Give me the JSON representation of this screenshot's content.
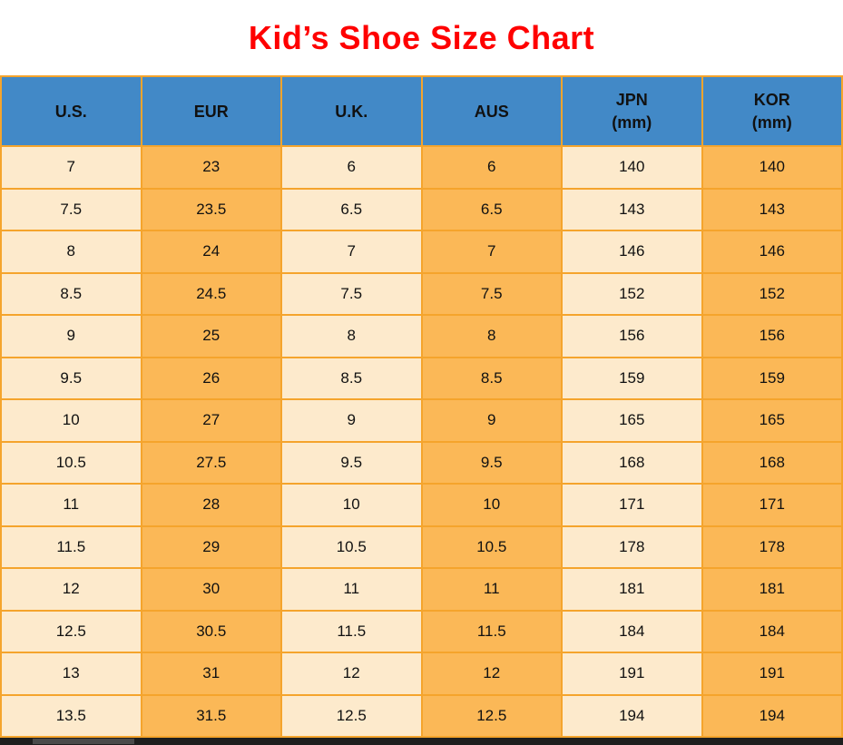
{
  "page": {
    "title": "Kid’s Shoe Size Chart"
  },
  "colors": {
    "title_red": "#FF0000",
    "header_blue": "#4289C7",
    "cell_cream": "#FDEACC",
    "cell_orange": "#FBB857",
    "border_orange": "#F5A42C",
    "scrollbar_track": "#1E1E1E",
    "scrollbar_thumb": "#4A4A4A"
  },
  "table": {
    "columns": [
      {
        "label": "U.S.",
        "sub": ""
      },
      {
        "label": "EUR",
        "sub": ""
      },
      {
        "label": "U.K.",
        "sub": ""
      },
      {
        "label": "AUS",
        "sub": ""
      },
      {
        "label": "JPN",
        "sub": "(mm)"
      },
      {
        "label": "KOR",
        "sub": "(mm)"
      }
    ],
    "rows": [
      [
        "7",
        "23",
        "6",
        "6",
        "140",
        "140"
      ],
      [
        "7.5",
        "23.5",
        "6.5",
        "6.5",
        "143",
        "143"
      ],
      [
        "8",
        "24",
        "7",
        "7",
        "146",
        "146"
      ],
      [
        "8.5",
        "24.5",
        "7.5",
        "7.5",
        "152",
        "152"
      ],
      [
        "9",
        "25",
        "8",
        "8",
        "156",
        "156"
      ],
      [
        "9.5",
        "26",
        "8.5",
        "8.5",
        "159",
        "159"
      ],
      [
        "10",
        "27",
        "9",
        "9",
        "165",
        "165"
      ],
      [
        "10.5",
        "27.5",
        "9.5",
        "9.5",
        "168",
        "168"
      ],
      [
        "11",
        "28",
        "10",
        "10",
        "171",
        "171"
      ],
      [
        "11.5",
        "29",
        "10.5",
        "10.5",
        "178",
        "178"
      ],
      [
        "12",
        "30",
        "11",
        "11",
        "181",
        "181"
      ],
      [
        "12.5",
        "30.5",
        "11.5",
        "11.5",
        "184",
        "184"
      ],
      [
        "13",
        "31",
        "12",
        "12",
        "191",
        "191"
      ],
      [
        "13.5",
        "31.5",
        "12.5",
        "12.5",
        "194",
        "194"
      ]
    ]
  },
  "chart_data": {
    "type": "table",
    "title": "Kid’s Shoe Size Chart",
    "columns": [
      "U.S.",
      "EUR",
      "U.K.",
      "AUS",
      "JPN (mm)",
      "KOR (mm)"
    ],
    "rows": [
      [
        "7",
        "23",
        "6",
        "6",
        "140",
        "140"
      ],
      [
        "7.5",
        "23.5",
        "6.5",
        "6.5",
        "143",
        "143"
      ],
      [
        "8",
        "24",
        "7",
        "7",
        "146",
        "146"
      ],
      [
        "8.5",
        "24.5",
        "7.5",
        "7.5",
        "152",
        "152"
      ],
      [
        "9",
        "25",
        "8",
        "8",
        "156",
        "156"
      ],
      [
        "9.5",
        "26",
        "8.5",
        "8.5",
        "159",
        "159"
      ],
      [
        "10",
        "27",
        "9",
        "9",
        "165",
        "165"
      ],
      [
        "10.5",
        "27.5",
        "9.5",
        "9.5",
        "168",
        "168"
      ],
      [
        "11",
        "28",
        "10",
        "10",
        "171",
        "171"
      ],
      [
        "11.5",
        "29",
        "10.5",
        "10.5",
        "178",
        "178"
      ],
      [
        "12",
        "30",
        "11",
        "11",
        "181",
        "181"
      ],
      [
        "12.5",
        "30.5",
        "11.5",
        "11.5",
        "184",
        "184"
      ],
      [
        "13",
        "31",
        "12",
        "12",
        "191",
        "191"
      ],
      [
        "13.5",
        "31.5",
        "12.5",
        "12.5",
        "194",
        "194"
      ]
    ]
  }
}
